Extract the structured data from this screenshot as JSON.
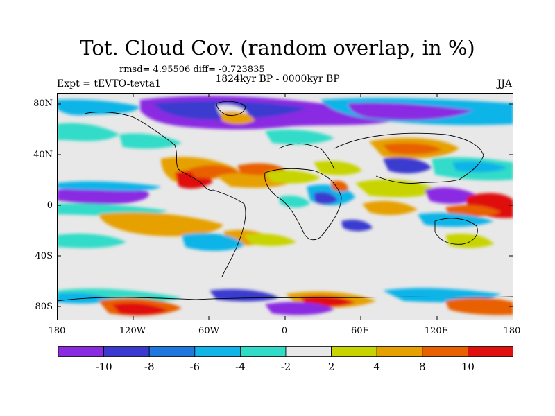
{
  "title": "Tot. Cloud Cov. (random overlap, in %)",
  "stats": "rmsd= 4.95506 diff= -0.723835",
  "period": "1824kyr BP - 0000kyr BP",
  "experiment": "Expt = tEVTO-tevta1",
  "season": "JJA",
  "lat_ticks": [
    "80N",
    "40N",
    "0",
    "40S",
    "80S"
  ],
  "lon_ticks": [
    "180",
    "120W",
    "60W",
    "0",
    "60E",
    "120E",
    "180"
  ],
  "colorbar": {
    "labels": [
      "-10",
      "-8",
      "-6",
      "-4",
      "-2",
      "2",
      "4",
      "8",
      "10"
    ],
    "colors": [
      "#8a2be2",
      "#3a3ad0",
      "#1e78e0",
      "#10b4e8",
      "#30dcc8",
      "#e8e8e8",
      "#c8d400",
      "#e6a000",
      "#e86000",
      "#e01010"
    ]
  },
  "colors": {
    "neutral": "#e8e8e8",
    "coast": "#000000"
  }
}
